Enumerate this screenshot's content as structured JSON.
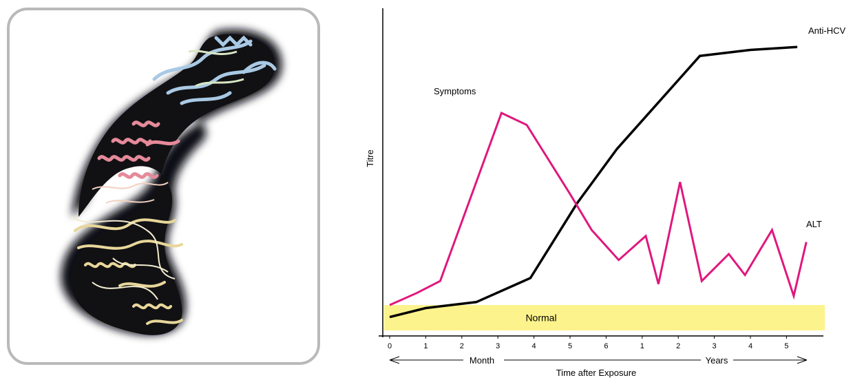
{
  "chart_data": {
    "type": "line",
    "ylabel": "Titre",
    "xlabel": "Time after Exposure",
    "x_ticks": [
      "0",
      "1",
      "2",
      "3",
      "4",
      "5",
      "6",
      "1",
      "2",
      "3",
      "4",
      "5"
    ],
    "period_labels": {
      "months": "Month",
      "years": "Years"
    },
    "normal_band": {
      "label": "Normal",
      "range": [
        0,
        0.08
      ],
      "color": "#fdf38c"
    },
    "ylim": [
      0,
      1
    ],
    "grid": false,
    "series": [
      {
        "name": "Anti-HCV",
        "color": "#000000",
        "points": [
          [
            0,
            0.04
          ],
          [
            1,
            0.07
          ],
          [
            2.4,
            0.09
          ],
          [
            3.9,
            0.17
          ],
          [
            5.2,
            0.42
          ],
          [
            6.3,
            0.6
          ],
          [
            8.6,
            0.91
          ],
          [
            10,
            0.93
          ],
          [
            11.3,
            0.94
          ]
        ]
      },
      {
        "name": "ALT",
        "color": "#e0177d",
        "points": [
          [
            0,
            0.08
          ],
          [
            0.75,
            0.12
          ],
          [
            1.4,
            0.16
          ],
          [
            3.1,
            0.72
          ],
          [
            3.8,
            0.68
          ],
          [
            5.0,
            0.45
          ],
          [
            5.6,
            0.33
          ],
          [
            6.35,
            0.23
          ],
          [
            7.1,
            0.31
          ],
          [
            7.45,
            0.15
          ],
          [
            8.05,
            0.49
          ],
          [
            8.65,
            0.16
          ],
          [
            9.4,
            0.25
          ],
          [
            9.85,
            0.18
          ],
          [
            10.6,
            0.33
          ],
          [
            11.2,
            0.11
          ],
          [
            11.55,
            0.29
          ]
        ]
      }
    ],
    "annotations": [
      "Symptoms"
    ]
  },
  "figure": {
    "image": "protein-ribbon-structure"
  }
}
